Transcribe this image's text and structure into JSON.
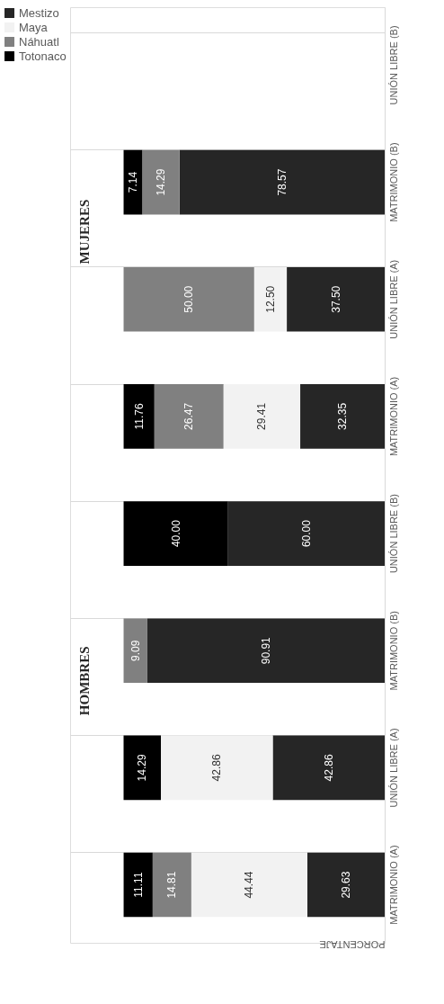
{
  "chart_data": {
    "type": "bar",
    "orientation": "horizontal",
    "stacked": true,
    "xlabel": "PORCENTAJE",
    "categories": [
      "UNIÓN LIBRE (B)",
      "MATRIMONIO (B)",
      "UNIÓN LIBRE (A)",
      "MATRIMONIO (A)",
      "UNIÓN LIBRE (B)",
      "MATRIMONIO (B)",
      "UNIÓN LIBRE (A)",
      "MATRIMONIO (A)"
    ],
    "series": [
      {
        "name": "Mestizo",
        "color": "#262626",
        "values": [
          null,
          78.57,
          37.5,
          32.35,
          60.0,
          90.91,
          42.86,
          29.63
        ],
        "value_labels": [
          null,
          "78.57",
          "37.50",
          "32.35",
          "60.00",
          "90.91",
          "42.86",
          "29.63"
        ]
      },
      {
        "name": "Maya",
        "color": "#f2f2f2",
        "values": [
          null,
          null,
          12.5,
          29.41,
          null,
          null,
          42.86,
          44.44
        ],
        "value_labels": [
          null,
          null,
          "12.50",
          "29.41",
          null,
          null,
          "42.86",
          "44.44"
        ]
      },
      {
        "name": "Náhuatl",
        "color": "#808080",
        "values": [
          null,
          14.29,
          50.0,
          26.47,
          null,
          9.09,
          null,
          14.81
        ],
        "value_labels": [
          null,
          "14.29",
          "50.00",
          "26.47",
          null,
          "9.09",
          null,
          "14.81"
        ]
      },
      {
        "name": "Totonaco",
        "color": "#000000",
        "values": [
          null,
          7.14,
          null,
          11.76,
          40.0,
          null,
          14.29,
          11.11
        ],
        "value_labels": [
          null,
          "7.14",
          null,
          "11.76",
          "40.00",
          null,
          "14.29",
          "11.11"
        ]
      }
    ],
    "annotations": [
      "MUJERES",
      "HOMBRES"
    ],
    "legend": "left",
    "grid": "y",
    "tick_labels": "y"
  }
}
